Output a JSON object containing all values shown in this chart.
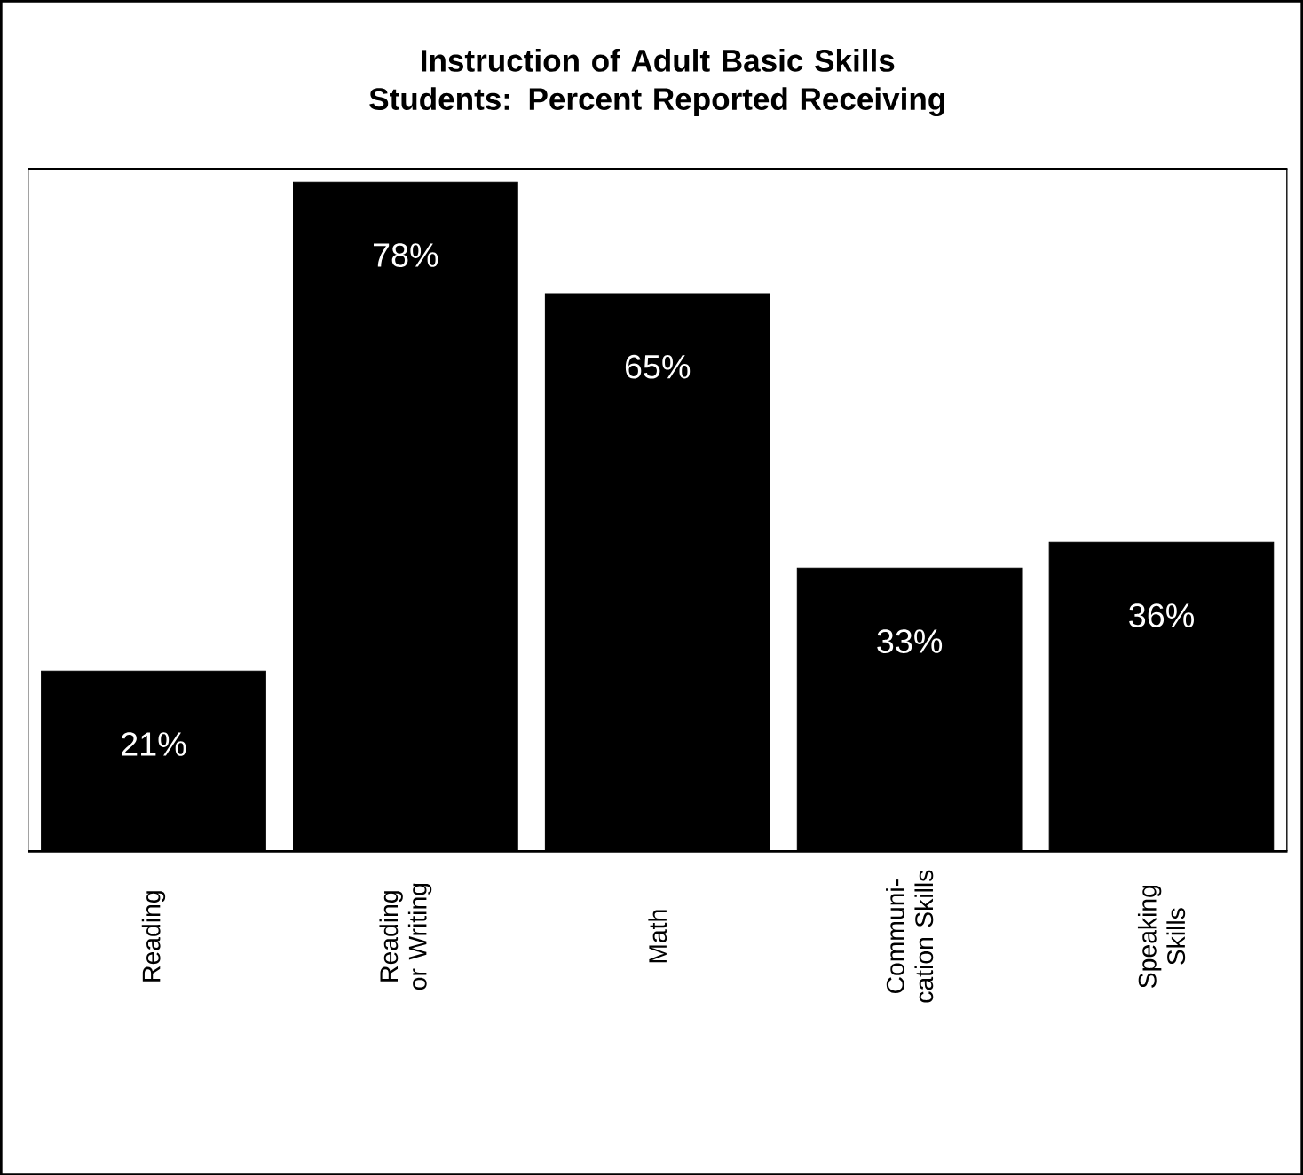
{
  "chart_data": {
    "type": "bar",
    "title": "Instruction of Adult Basic Skills Students: Percent Reported Receiving",
    "categories": [
      "Reading",
      "Reading or Writing",
      "Math",
      "Communi-cation Skills",
      "Speaking Skills"
    ],
    "values": [
      21,
      78,
      65,
      33,
      36
    ],
    "value_labels": [
      "21%",
      "78%",
      "65%",
      "33%",
      "36%"
    ],
    "color": "#000000",
    "grid": false
  }
}
